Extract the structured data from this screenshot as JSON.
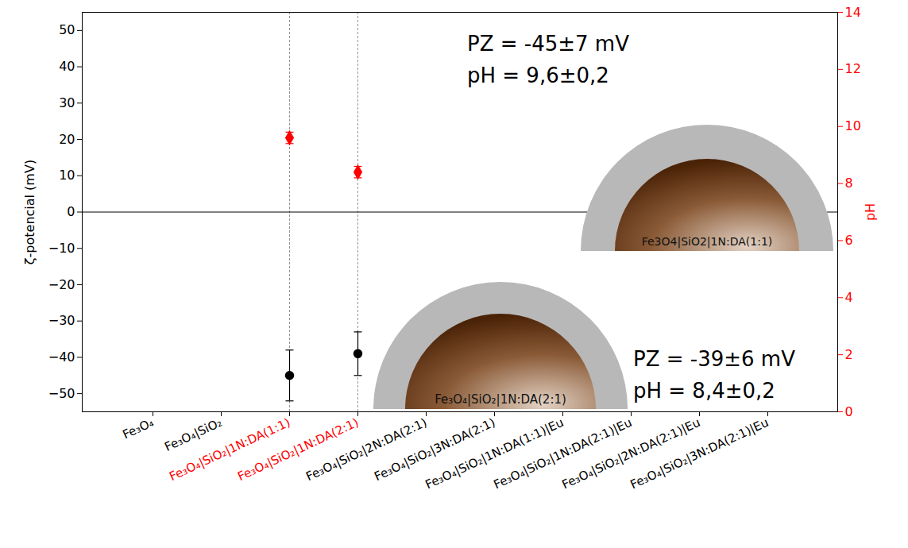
{
  "chart_data": {
    "type": "scatter",
    "categories": [
      "Fe₃O₄",
      "Fe₃O₄|SiO₂",
      "Fe₃O₄|SiO₂|1N:DA(1:1)",
      "Fe₃O₄|SiO₂|1N:DA(2:1)",
      "Fe₃O₄|SiO₂|2N:DA(2:1)",
      "Fe₃O₄|SiO₂|3N:DA(2:1)",
      "Fe₃O₄|SiO₂|1N:DA(1:1)|Eu",
      "Fe₃O₄|SiO₂|1N:DA(2:1)|Eu",
      "Fe₃O₄|SiO₂|2N:DA(2:1)|Eu",
      "Fe₃O₄|SiO₂|3N:DA(2:1)|Eu"
    ],
    "ylabel": "ζ-potencial (mV)",
    "y2label": "pH",
    "ylim": [
      -55,
      55
    ],
    "yticks": [
      -50,
      -40,
      -30,
      -20,
      -10,
      0,
      10,
      20,
      30,
      40,
      50
    ],
    "y2lim": [
      0,
      14
    ],
    "y2ticks": [
      0,
      2,
      4,
      6,
      8,
      10,
      12,
      14
    ],
    "series": [
      {
        "name": "ζ-potencial",
        "color": "#000000",
        "marker": "circle",
        "values": [
          null,
          null,
          -45,
          -39,
          null,
          null,
          null,
          null,
          null,
          null
        ],
        "errors": [
          null,
          null,
          7,
          6,
          null,
          null,
          null,
          null,
          null,
          null
        ]
      },
      {
        "name": "pH",
        "axis": "y2",
        "color": "#ff0000",
        "marker": "diamond",
        "values": [
          null,
          null,
          9.6,
          8.4,
          null,
          null,
          null,
          null,
          null,
          null
        ],
        "errors": [
          null,
          null,
          0.2,
          0.2,
          null,
          null,
          null,
          null,
          null,
          null
        ]
      }
    ],
    "annotations": [
      "PZ = -45±7 mV",
      "pH = 9,6±0,2",
      "PZ = -39±6 mV",
      "pH = 8,4±0,2"
    ],
    "particles": [
      "Fe3O4|SiO2|1N:DA(1:1)",
      "Fe₃O₄|SiO₂|1N:DA(2:1)"
    ]
  }
}
